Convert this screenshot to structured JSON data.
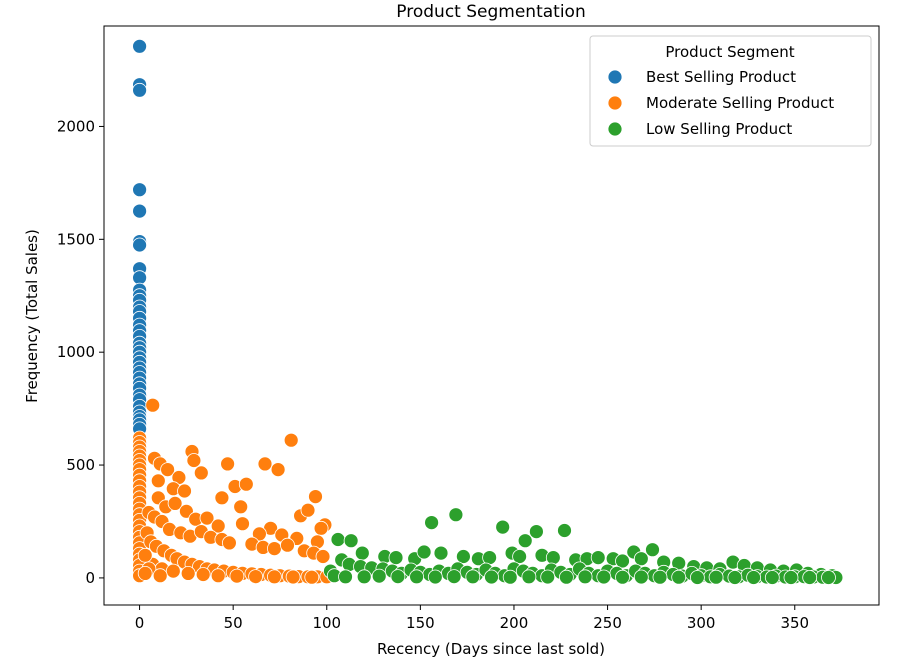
{
  "chart_data": {
    "type": "scatter",
    "title": "Product Segmentation",
    "xlabel": "Recency (Days since last sold)",
    "ylabel": "Frequency (Total Sales)",
    "xlim": [
      -19,
      395
    ],
    "ylim": [
      -120,
      2445
    ],
    "xticks": [
      {
        "value": 0,
        "label": "0"
      },
      {
        "value": 50,
        "label": "50"
      },
      {
        "value": 100,
        "label": "100"
      },
      {
        "value": 150,
        "label": "150"
      },
      {
        "value": 200,
        "label": "200"
      },
      {
        "value": 250,
        "label": "250"
      },
      {
        "value": 300,
        "label": "300"
      },
      {
        "value": 350,
        "label": "350"
      }
    ],
    "yticks": [
      {
        "value": 0,
        "label": "0"
      },
      {
        "value": 500,
        "label": "500"
      },
      {
        "value": 1000,
        "label": "1000"
      },
      {
        "value": 1500,
        "label": "1500"
      },
      {
        "value": 2000,
        "label": "2000"
      }
    ],
    "grid": false,
    "legend": {
      "title": "Product Segment",
      "placement": "top-right"
    },
    "series": [
      {
        "name": "Best Selling Product",
        "color": "#1f77b4",
        "points": [
          [
            0,
            2355
          ],
          [
            0,
            2185
          ],
          [
            0,
            2160
          ],
          [
            0,
            1720
          ],
          [
            0,
            1625
          ],
          [
            0,
            1490
          ],
          [
            0,
            1475
          ],
          [
            0,
            1370
          ],
          [
            0,
            1330
          ],
          [
            0,
            1275
          ],
          [
            0,
            1250
          ],
          [
            0,
            1230
          ],
          [
            0,
            1200
          ],
          [
            0,
            1180
          ],
          [
            0,
            1150
          ],
          [
            0,
            1120
          ],
          [
            0,
            1095
          ],
          [
            0,
            1070
          ],
          [
            0,
            1040
          ],
          [
            0,
            1020
          ],
          [
            0,
            1000
          ],
          [
            0,
            975
          ],
          [
            0,
            955
          ],
          [
            0,
            930
          ],
          [
            0,
            910
          ],
          [
            0,
            885
          ],
          [
            0,
            860
          ],
          [
            0,
            840
          ],
          [
            0,
            810
          ],
          [
            0,
            790
          ],
          [
            0,
            760
          ],
          [
            0,
            735
          ],
          [
            0,
            715
          ],
          [
            0,
            700
          ],
          [
            0,
            680
          ],
          [
            0,
            660
          ]
        ]
      },
      {
        "name": "Moderate Selling Product",
        "color": "#ff7f0e",
        "points": [
          [
            7,
            765
          ],
          [
            81,
            610
          ],
          [
            0,
            620
          ],
          [
            0,
            600
          ],
          [
            0,
            580
          ],
          [
            0,
            560
          ],
          [
            0,
            540
          ],
          [
            0,
            520
          ],
          [
            0,
            500
          ],
          [
            0,
            480
          ],
          [
            0,
            455
          ],
          [
            0,
            430
          ],
          [
            0,
            405
          ],
          [
            0,
            380
          ],
          [
            0,
            355
          ],
          [
            0,
            330
          ],
          [
            0,
            305
          ],
          [
            0,
            280
          ],
          [
            0,
            255
          ],
          [
            0,
            230
          ],
          [
            0,
            205
          ],
          [
            0,
            180
          ],
          [
            0,
            155
          ],
          [
            0,
            130
          ],
          [
            0,
            105
          ],
          [
            0,
            80
          ],
          [
            0,
            55
          ],
          [
            0,
            30
          ],
          [
            0,
            10
          ],
          [
            28,
            560
          ],
          [
            29,
            520
          ],
          [
            47,
            505
          ],
          [
            67,
            505
          ],
          [
            74,
            480
          ],
          [
            8,
            530
          ],
          [
            11,
            505
          ],
          [
            15,
            480
          ],
          [
            21,
            445
          ],
          [
            10,
            430
          ],
          [
            18,
            395
          ],
          [
            24,
            385
          ],
          [
            33,
            465
          ],
          [
            51,
            405
          ],
          [
            57,
            415
          ],
          [
            44,
            355
          ],
          [
            10,
            355
          ],
          [
            14,
            315
          ],
          [
            5,
            290
          ],
          [
            8,
            270
          ],
          [
            19,
            330
          ],
          [
            25,
            295
          ],
          [
            30,
            260
          ],
          [
            36,
            265
          ],
          [
            54,
            315
          ],
          [
            86,
            275
          ],
          [
            90,
            300
          ],
          [
            94,
            360
          ],
          [
            99,
            235
          ],
          [
            97,
            220
          ],
          [
            70,
            220
          ],
          [
            64,
            195
          ],
          [
            76,
            190
          ],
          [
            84,
            175
          ],
          [
            95,
            160
          ],
          [
            55,
            240
          ],
          [
            42,
            230
          ],
          [
            12,
            250
          ],
          [
            16,
            215
          ],
          [
            22,
            200
          ],
          [
            27,
            185
          ],
          [
            33,
            205
          ],
          [
            38,
            180
          ],
          [
            44,
            170
          ],
          [
            48,
            155
          ],
          [
            60,
            150
          ],
          [
            66,
            135
          ],
          [
            72,
            130
          ],
          [
            79,
            145
          ],
          [
            88,
            120
          ],
          [
            93,
            110
          ],
          [
            98,
            95
          ],
          [
            4,
            200
          ],
          [
            6,
            160
          ],
          [
            9,
            140
          ],
          [
            13,
            120
          ],
          [
            17,
            100
          ],
          [
            20,
            85
          ],
          [
            24,
            70
          ],
          [
            28,
            60
          ],
          [
            32,
            50
          ],
          [
            36,
            40
          ],
          [
            40,
            35
          ],
          [
            45,
            30
          ],
          [
            50,
            25
          ],
          [
            55,
            20
          ],
          [
            60,
            18
          ],
          [
            65,
            15
          ],
          [
            70,
            12
          ],
          [
            75,
            10
          ],
          [
            80,
            8
          ],
          [
            85,
            6
          ],
          [
            90,
            5
          ],
          [
            95,
            5
          ],
          [
            100,
            5
          ],
          [
            7,
            60
          ],
          [
            12,
            40
          ],
          [
            18,
            30
          ],
          [
            26,
            20
          ],
          [
            34,
            15
          ],
          [
            42,
            10
          ],
          [
            52,
            8
          ],
          [
            62,
            6
          ],
          [
            72,
            5
          ],
          [
            82,
            4
          ],
          [
            92,
            3
          ],
          [
            3,
            100
          ],
          [
            5,
            40
          ],
          [
            3,
            20
          ],
          [
            11,
            10
          ]
        ]
      },
      {
        "name": "Low Selling Product",
        "color": "#2ca02c",
        "points": [
          [
            169,
            280
          ],
          [
            156,
            245
          ],
          [
            194,
            225
          ],
          [
            227,
            210
          ],
          [
            212,
            205
          ],
          [
            106,
            170
          ],
          [
            113,
            165
          ],
          [
            206,
            165
          ],
          [
            274,
            125
          ],
          [
            264,
            115
          ],
          [
            119,
            110
          ],
          [
            131,
            95
          ],
          [
            137,
            90
          ],
          [
            147,
            85
          ],
          [
            152,
            115
          ],
          [
            161,
            110
          ],
          [
            173,
            95
          ],
          [
            181,
            85
          ],
          [
            187,
            90
          ],
          [
            199,
            110
          ],
          [
            203,
            95
          ],
          [
            215,
            100
          ],
          [
            221,
            90
          ],
          [
            233,
            80
          ],
          [
            239,
            85
          ],
          [
            245,
            90
          ],
          [
            253,
            85
          ],
          [
            258,
            75
          ],
          [
            268,
            85
          ],
          [
            280,
            70
          ],
          [
            288,
            65
          ],
          [
            296,
            50
          ],
          [
            303,
            45
          ],
          [
            310,
            40
          ],
          [
            317,
            70
          ],
          [
            323,
            55
          ],
          [
            330,
            45
          ],
          [
            337,
            35
          ],
          [
            344,
            30
          ],
          [
            351,
            35
          ],
          [
            357,
            20
          ],
          [
            364,
            15
          ],
          [
            370,
            10
          ],
          [
            350,
            5
          ],
          [
            108,
            80
          ],
          [
            112,
            60
          ],
          [
            118,
            50
          ],
          [
            124,
            45
          ],
          [
            130,
            40
          ],
          [
            135,
            30
          ],
          [
            140,
            20
          ],
          [
            145,
            35
          ],
          [
            150,
            25
          ],
          [
            155,
            15
          ],
          [
            160,
            30
          ],
          [
            165,
            20
          ],
          [
            170,
            40
          ],
          [
            175,
            25
          ],
          [
            180,
            15
          ],
          [
            185,
            35
          ],
          [
            190,
            20
          ],
          [
            195,
            10
          ],
          [
            200,
            40
          ],
          [
            205,
            30
          ],
          [
            210,
            20
          ],
          [
            215,
            10
          ],
          [
            220,
            35
          ],
          [
            225,
            25
          ],
          [
            230,
            15
          ],
          [
            235,
            40
          ],
          [
            240,
            20
          ],
          [
            245,
            10
          ],
          [
            250,
            30
          ],
          [
            255,
            20
          ],
          [
            260,
            10
          ],
          [
            265,
            30
          ],
          [
            270,
            20
          ],
          [
            275,
            10
          ],
          [
            280,
            25
          ],
          [
            285,
            15
          ],
          [
            290,
            8
          ],
          [
            295,
            20
          ],
          [
            300,
            10
          ],
          [
            305,
            5
          ],
          [
            310,
            15
          ],
          [
            315,
            8
          ],
          [
            320,
            5
          ],
          [
            325,
            12
          ],
          [
            330,
            6
          ],
          [
            335,
            4
          ],
          [
            340,
            8
          ],
          [
            345,
            4
          ],
          [
            355,
            6
          ],
          [
            360,
            4
          ],
          [
            365,
            3
          ],
          [
            372,
            2
          ],
          [
            102,
            30
          ],
          [
            104,
            10
          ],
          [
            110,
            5
          ],
          [
            120,
            5
          ],
          [
            128,
            8
          ],
          [
            138,
            6
          ],
          [
            148,
            5
          ],
          [
            158,
            4
          ],
          [
            168,
            6
          ],
          [
            178,
            5
          ],
          [
            188,
            4
          ],
          [
            198,
            3
          ],
          [
            208,
            5
          ],
          [
            218,
            4
          ],
          [
            228,
            3
          ],
          [
            238,
            5
          ],
          [
            248,
            4
          ],
          [
            258,
            3
          ],
          [
            268,
            4
          ],
          [
            278,
            3
          ],
          [
            288,
            3
          ],
          [
            298,
            2
          ],
          [
            308,
            3
          ],
          [
            318,
            2
          ],
          [
            328,
            2
          ],
          [
            338,
            2
          ],
          [
            348,
            2
          ],
          [
            358,
            2
          ],
          [
            368,
            2
          ]
        ]
      }
    ]
  }
}
